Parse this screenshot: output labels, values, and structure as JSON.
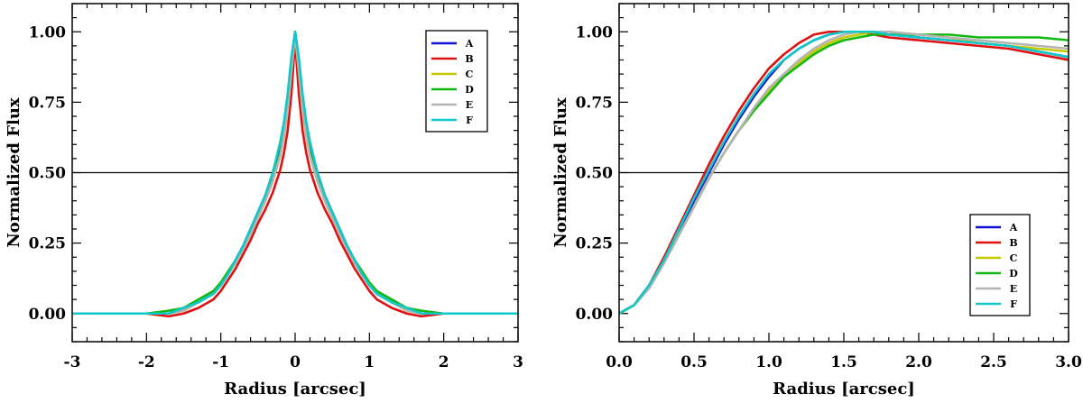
{
  "series_colors": {
    "A": "#1010d8",
    "B": "#e01010",
    "C": "#c8c800",
    "D": "#10b810",
    "E": "#b4b4b4",
    "F": "#10c8c8"
  },
  "chart_data": [
    {
      "type": "line",
      "title": "",
      "xlabel": "Radius [arcsec]",
      "ylabel": "Normalized Flux",
      "xlim": [
        -3,
        3
      ],
      "ylim": [
        -0.1,
        1.1
      ],
      "xticks": [
        -3,
        -2,
        -1,
        0,
        1,
        2,
        3
      ],
      "xtick_labels": [
        "-3",
        "-2",
        "-1",
        "0",
        "1",
        "2",
        "3"
      ],
      "yticks": [
        0,
        0.25,
        0.5,
        0.75,
        1.0
      ],
      "ytick_labels": [
        "0.00",
        "0.25",
        "0.50",
        "0.75",
        "1.00"
      ],
      "hline": 0.5,
      "legend": {
        "position": "top-right",
        "entries": [
          "A",
          "B",
          "C",
          "D",
          "E",
          "F"
        ]
      },
      "series": [
        {
          "name": "A",
          "x": [
            -3.0,
            -2.5,
            -2.0,
            -1.7,
            -1.5,
            -1.3,
            -1.1,
            -1.0,
            -0.9,
            -0.8,
            -0.7,
            -0.6,
            -0.5,
            -0.4,
            -0.3,
            -0.2,
            -0.15,
            -0.1,
            -0.05,
            0.0,
            0.05,
            0.1,
            0.15,
            0.2,
            0.3,
            0.4,
            0.5,
            0.6,
            0.7,
            0.8,
            0.9,
            1.0,
            1.1,
            1.3,
            1.5,
            1.7,
            2.0,
            2.5,
            3.0
          ],
          "y": [
            0.0,
            0.0,
            0.0,
            0.0,
            0.02,
            0.04,
            0.07,
            0.1,
            0.14,
            0.19,
            0.24,
            0.3,
            0.36,
            0.42,
            0.5,
            0.6,
            0.67,
            0.77,
            0.9,
            1.0,
            0.9,
            0.77,
            0.67,
            0.6,
            0.5,
            0.42,
            0.36,
            0.3,
            0.24,
            0.19,
            0.14,
            0.1,
            0.07,
            0.04,
            0.02,
            0.0,
            0.0,
            0.0,
            0.0
          ]
        },
        {
          "name": "B",
          "x": [
            -3.0,
            -2.5,
            -2.0,
            -1.7,
            -1.5,
            -1.3,
            -1.1,
            -1.0,
            -0.9,
            -0.8,
            -0.7,
            -0.6,
            -0.5,
            -0.4,
            -0.3,
            -0.2,
            -0.15,
            -0.1,
            -0.05,
            0.0,
            0.05,
            0.1,
            0.15,
            0.2,
            0.3,
            0.4,
            0.5,
            0.6,
            0.7,
            0.8,
            0.9,
            1.0,
            1.1,
            1.3,
            1.5,
            1.7,
            2.0,
            2.5,
            3.0
          ],
          "y": [
            0.0,
            0.0,
            0.0,
            -0.01,
            0.0,
            0.02,
            0.05,
            0.08,
            0.12,
            0.16,
            0.21,
            0.26,
            0.32,
            0.37,
            0.43,
            0.51,
            0.57,
            0.65,
            0.78,
            0.97,
            0.78,
            0.65,
            0.57,
            0.51,
            0.43,
            0.37,
            0.32,
            0.26,
            0.21,
            0.16,
            0.12,
            0.08,
            0.05,
            0.02,
            0.0,
            -0.01,
            0.0,
            0.0,
            0.0
          ]
        },
        {
          "name": "C",
          "x": [
            -3.0,
            -2.5,
            -2.0,
            -1.7,
            -1.5,
            -1.3,
            -1.1,
            -1.0,
            -0.9,
            -0.8,
            -0.7,
            -0.6,
            -0.5,
            -0.4,
            -0.3,
            -0.2,
            -0.15,
            -0.1,
            -0.05,
            0.0,
            0.05,
            0.1,
            0.15,
            0.2,
            0.3,
            0.4,
            0.5,
            0.6,
            0.7,
            0.8,
            0.9,
            1.0,
            1.1,
            1.3,
            1.5,
            1.7,
            2.0,
            2.5,
            3.0
          ],
          "y": [
            0.0,
            0.0,
            0.0,
            0.0,
            0.01,
            0.04,
            0.07,
            0.1,
            0.14,
            0.18,
            0.23,
            0.28,
            0.34,
            0.4,
            0.47,
            0.56,
            0.63,
            0.72,
            0.86,
            0.99,
            0.86,
            0.72,
            0.63,
            0.56,
            0.47,
            0.4,
            0.34,
            0.28,
            0.23,
            0.18,
            0.14,
            0.1,
            0.07,
            0.04,
            0.01,
            0.0,
            0.0,
            0.0,
            0.0
          ]
        },
        {
          "name": "D",
          "x": [
            -3.0,
            -2.5,
            -2.0,
            -1.7,
            -1.5,
            -1.3,
            -1.1,
            -1.0,
            -0.9,
            -0.8,
            -0.7,
            -0.6,
            -0.5,
            -0.4,
            -0.3,
            -0.2,
            -0.15,
            -0.1,
            -0.05,
            0.0,
            0.05,
            0.1,
            0.15,
            0.2,
            0.3,
            0.4,
            0.5,
            0.6,
            0.7,
            0.8,
            0.9,
            1.0,
            1.1,
            1.3,
            1.5,
            1.7,
            2.0,
            2.5,
            3.0
          ],
          "y": [
            0.0,
            0.0,
            0.0,
            0.01,
            0.02,
            0.05,
            0.08,
            0.11,
            0.15,
            0.19,
            0.24,
            0.29,
            0.35,
            0.41,
            0.48,
            0.57,
            0.64,
            0.73,
            0.87,
            1.0,
            0.87,
            0.73,
            0.64,
            0.57,
            0.48,
            0.41,
            0.35,
            0.29,
            0.24,
            0.19,
            0.15,
            0.11,
            0.08,
            0.05,
            0.02,
            0.01,
            0.0,
            0.0,
            0.0
          ]
        },
        {
          "name": "E",
          "x": [
            -3.0,
            -2.5,
            -2.0,
            -1.7,
            -1.5,
            -1.3,
            -1.1,
            -1.0,
            -0.9,
            -0.8,
            -0.7,
            -0.6,
            -0.5,
            -0.4,
            -0.3,
            -0.2,
            -0.15,
            -0.1,
            -0.05,
            0.0,
            0.05,
            0.1,
            0.15,
            0.2,
            0.3,
            0.4,
            0.5,
            0.6,
            0.7,
            0.8,
            0.9,
            1.0,
            1.1,
            1.3,
            1.5,
            1.7,
            2.0,
            2.5,
            3.0
          ],
          "y": [
            0.0,
            0.0,
            0.0,
            0.0,
            0.01,
            0.04,
            0.07,
            0.1,
            0.14,
            0.18,
            0.23,
            0.28,
            0.34,
            0.4,
            0.47,
            0.56,
            0.63,
            0.72,
            0.86,
            0.99,
            0.86,
            0.72,
            0.63,
            0.56,
            0.47,
            0.4,
            0.34,
            0.28,
            0.23,
            0.18,
            0.14,
            0.1,
            0.07,
            0.04,
            0.01,
            0.0,
            0.0,
            0.0,
            0.0
          ]
        },
        {
          "name": "F",
          "x": [
            -3.0,
            -2.5,
            -2.0,
            -1.7,
            -1.5,
            -1.3,
            -1.1,
            -1.0,
            -0.9,
            -0.8,
            -0.7,
            -0.6,
            -0.5,
            -0.4,
            -0.3,
            -0.2,
            -0.15,
            -0.1,
            -0.05,
            0.0,
            0.05,
            0.1,
            0.15,
            0.2,
            0.3,
            0.4,
            0.5,
            0.6,
            0.7,
            0.8,
            0.9,
            1.0,
            1.1,
            1.3,
            1.5,
            1.7,
            2.0,
            2.5,
            3.0
          ],
          "y": [
            0.0,
            0.0,
            0.0,
            0.0,
            0.02,
            0.04,
            0.07,
            0.1,
            0.14,
            0.19,
            0.24,
            0.3,
            0.36,
            0.42,
            0.5,
            0.61,
            0.68,
            0.78,
            0.91,
            1.0,
            0.91,
            0.78,
            0.68,
            0.61,
            0.5,
            0.42,
            0.36,
            0.3,
            0.24,
            0.19,
            0.14,
            0.1,
            0.07,
            0.04,
            0.02,
            0.0,
            0.0,
            0.0,
            0.0
          ]
        }
      ]
    },
    {
      "type": "line",
      "title": "",
      "xlabel": "Radius [arcsec]",
      "ylabel": "Normalized Flux",
      "xlim": [
        0.0,
        3.0
      ],
      "ylim": [
        -0.1,
        1.1
      ],
      "xticks": [
        0.0,
        0.5,
        1.0,
        1.5,
        2.0,
        2.5,
        3.0
      ],
      "xtick_labels": [
        "0.0",
        "0.5",
        "1.0",
        "1.5",
        "2.0",
        "2.5",
        "3.0"
      ],
      "yticks": [
        0,
        0.25,
        0.5,
        0.75,
        1.0
      ],
      "ytick_labels": [
        "0.00",
        "0.25",
        "0.50",
        "0.75",
        "1.00"
      ],
      "hline": 0.5,
      "legend": {
        "position": "bottom-right",
        "entries": [
          "A",
          "B",
          "C",
          "D",
          "E",
          "F"
        ]
      },
      "series": [
        {
          "name": "A",
          "x": [
            0.0,
            0.1,
            0.2,
            0.3,
            0.4,
            0.5,
            0.6,
            0.7,
            0.8,
            0.9,
            1.0,
            1.1,
            1.2,
            1.3,
            1.4,
            1.5,
            1.6,
            1.7,
            1.8,
            2.0,
            2.2,
            2.4,
            2.6,
            2.8,
            3.0
          ],
          "y": [
            0.0,
            0.03,
            0.1,
            0.19,
            0.29,
            0.4,
            0.5,
            0.6,
            0.69,
            0.77,
            0.84,
            0.9,
            0.94,
            0.97,
            0.99,
            1.0,
            1.0,
            1.0,
            0.99,
            0.98,
            0.97,
            0.96,
            0.95,
            0.93,
            0.91
          ]
        },
        {
          "name": "B",
          "x": [
            0.0,
            0.1,
            0.2,
            0.3,
            0.4,
            0.5,
            0.6,
            0.7,
            0.8,
            0.9,
            1.0,
            1.1,
            1.2,
            1.3,
            1.4,
            1.5,
            1.6,
            1.7,
            1.8,
            2.0,
            2.2,
            2.4,
            2.6,
            2.8,
            3.0
          ],
          "y": [
            0.0,
            0.03,
            0.1,
            0.2,
            0.31,
            0.42,
            0.53,
            0.63,
            0.72,
            0.8,
            0.87,
            0.92,
            0.96,
            0.99,
            1.0,
            1.0,
            1.0,
            0.99,
            0.98,
            0.97,
            0.96,
            0.95,
            0.94,
            0.92,
            0.9
          ]
        },
        {
          "name": "C",
          "x": [
            0.0,
            0.1,
            0.2,
            0.3,
            0.4,
            0.5,
            0.6,
            0.7,
            0.8,
            0.9,
            1.0,
            1.1,
            1.2,
            1.3,
            1.4,
            1.5,
            1.6,
            1.7,
            1.8,
            2.0,
            2.2,
            2.4,
            2.6,
            2.8,
            3.0
          ],
          "y": [
            0.0,
            0.03,
            0.09,
            0.18,
            0.28,
            0.38,
            0.48,
            0.57,
            0.65,
            0.72,
            0.79,
            0.84,
            0.89,
            0.93,
            0.96,
            0.98,
            0.99,
            1.0,
            1.0,
            0.99,
            0.98,
            0.96,
            0.95,
            0.94,
            0.93
          ]
        },
        {
          "name": "D",
          "x": [
            0.0,
            0.1,
            0.2,
            0.3,
            0.4,
            0.5,
            0.6,
            0.7,
            0.8,
            0.9,
            1.0,
            1.1,
            1.2,
            1.3,
            1.4,
            1.5,
            1.6,
            1.7,
            1.8,
            2.0,
            2.2,
            2.4,
            2.6,
            2.8,
            3.0
          ],
          "y": [
            0.0,
            0.03,
            0.09,
            0.18,
            0.28,
            0.38,
            0.48,
            0.57,
            0.65,
            0.72,
            0.78,
            0.84,
            0.88,
            0.92,
            0.95,
            0.97,
            0.98,
            0.99,
            0.99,
            0.99,
            0.99,
            0.98,
            0.98,
            0.98,
            0.97
          ]
        },
        {
          "name": "E",
          "x": [
            0.0,
            0.1,
            0.2,
            0.3,
            0.4,
            0.5,
            0.6,
            0.7,
            0.8,
            0.9,
            1.0,
            1.1,
            1.2,
            1.3,
            1.4,
            1.5,
            1.6,
            1.7,
            1.8,
            2.0,
            2.2,
            2.4,
            2.6,
            2.8,
            3.0
          ],
          "y": [
            0.0,
            0.03,
            0.09,
            0.18,
            0.28,
            0.38,
            0.48,
            0.57,
            0.65,
            0.73,
            0.8,
            0.85,
            0.9,
            0.94,
            0.97,
            0.99,
            1.0,
            1.0,
            1.0,
            0.99,
            0.98,
            0.97,
            0.96,
            0.95,
            0.94
          ]
        },
        {
          "name": "F",
          "x": [
            0.0,
            0.1,
            0.2,
            0.3,
            0.4,
            0.5,
            0.6,
            0.7,
            0.8,
            0.9,
            1.0,
            1.1,
            1.2,
            1.3,
            1.4,
            1.5,
            1.6,
            1.7,
            1.8,
            2.0,
            2.2,
            2.4,
            2.6,
            2.8,
            3.0
          ],
          "y": [
            0.0,
            0.03,
            0.1,
            0.19,
            0.3,
            0.41,
            0.51,
            0.61,
            0.7,
            0.78,
            0.85,
            0.9,
            0.94,
            0.97,
            0.99,
            1.0,
            1.0,
            1.0,
            0.99,
            0.98,
            0.97,
            0.96,
            0.95,
            0.93,
            0.91
          ]
        }
      ]
    }
  ]
}
